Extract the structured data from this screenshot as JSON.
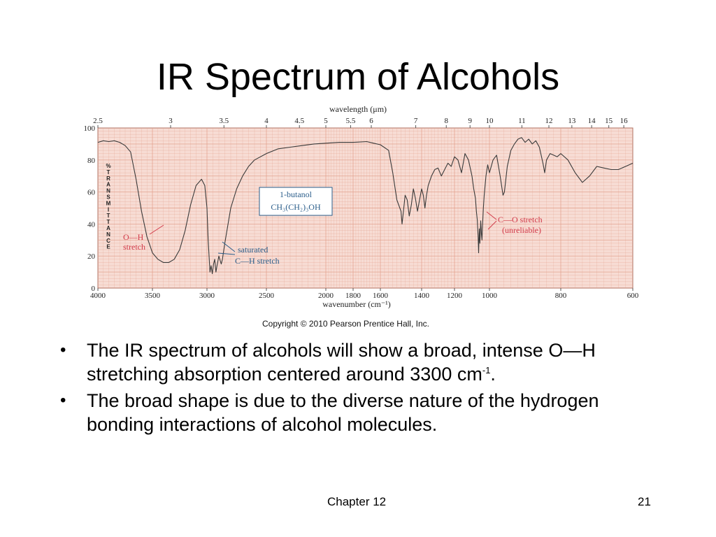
{
  "slide": {
    "title": "IR Spectrum of Alcohols",
    "copyright": "Copyright © 2010 Pearson Prentice Hall, Inc.",
    "bullets": [
      {
        "before": "The IR spectrum of alcohols will show a broad, intense O—H stretching absorption centered around 3300 cm",
        "sup": "-1",
        "after": "."
      },
      {
        "before": "The broad shape is due to the diverse nature of the hydrogen bonding interactions of alcohol molecules.",
        "sup": "",
        "after": ""
      }
    ],
    "footer": {
      "chapter": "Chapter 12",
      "page": "21"
    }
  },
  "chart_data": {
    "type": "line",
    "title": "",
    "xlabel": "wavenumber (cm⁻¹)",
    "top_axis_label": "wavelength (μm)",
    "ylabel_letters": [
      "%",
      "T",
      "R",
      "A",
      "N",
      "S",
      "M",
      "I",
      "T",
      "T",
      "A",
      "N",
      "C",
      "E"
    ],
    "x_ticks": [
      {
        "v": 4000,
        "label": "4000"
      },
      {
        "v": 3500,
        "label": "3500"
      },
      {
        "v": 3000,
        "label": "3000"
      },
      {
        "v": 2500,
        "label": "2500"
      },
      {
        "v": 2000,
        "label": "2000"
      },
      {
        "v": 1800,
        "label": "1800"
      },
      {
        "v": 1600,
        "label": "1600"
      },
      {
        "v": 1400,
        "label": "1400"
      },
      {
        "v": 1200,
        "label": "1200"
      },
      {
        "v": 1000,
        "label": "1000"
      },
      {
        "v": 800,
        "label": "800"
      },
      {
        "v": 600,
        "label": "600"
      }
    ],
    "top_ticks": [
      {
        "v": 2.5,
        "label": "2.5"
      },
      {
        "v": 3,
        "label": "3"
      },
      {
        "v": 3.5,
        "label": "3.5"
      },
      {
        "v": 4,
        "label": "4"
      },
      {
        "v": 4.5,
        "label": "4.5"
      },
      {
        "v": 5,
        "label": "5"
      },
      {
        "v": 5.5,
        "label": "5.5"
      },
      {
        "v": 6,
        "label": "6"
      },
      {
        "v": 7,
        "label": "7"
      },
      {
        "v": 8,
        "label": "8"
      },
      {
        "v": 9,
        "label": "9"
      },
      {
        "v": 10,
        "label": "10"
      },
      {
        "v": 11,
        "label": "11"
      },
      {
        "v": 12,
        "label": "12"
      },
      {
        "v": 13,
        "label": "13"
      },
      {
        "v": 14,
        "label": "14"
      },
      {
        "v": 15,
        "label": "15"
      },
      {
        "v": 16,
        "label": "16"
      }
    ],
    "y_ticks": [
      0,
      20,
      40,
      60,
      80,
      100
    ],
    "ylim": [
      0,
      100
    ],
    "grid": true,
    "colors": {
      "grid_bg": "#f7dcd4",
      "grid_line": "#e2a08c",
      "curve": "#3a3a3a",
      "annotation_red": "#d23b4a",
      "annotation_blue": "#2a5d8a"
    },
    "series": [
      {
        "name": "1-butanol",
        "points": [
          [
            4000,
            91
          ],
          [
            3950,
            92
          ],
          [
            3900,
            91.5
          ],
          [
            3850,
            92
          ],
          [
            3800,
            91
          ],
          [
            3750,
            89
          ],
          [
            3700,
            85
          ],
          [
            3650,
            68
          ],
          [
            3600,
            48
          ],
          [
            3550,
            32
          ],
          [
            3500,
            22
          ],
          [
            3450,
            18
          ],
          [
            3400,
            16
          ],
          [
            3350,
            16
          ],
          [
            3300,
            18
          ],
          [
            3250,
            24
          ],
          [
            3200,
            36
          ],
          [
            3150,
            52
          ],
          [
            3100,
            64
          ],
          [
            3050,
            68
          ],
          [
            3020,
            64
          ],
          [
            3000,
            50
          ],
          [
            2990,
            30
          ],
          [
            2975,
            10
          ],
          [
            2965,
            14
          ],
          [
            2955,
            9
          ],
          [
            2945,
            15
          ],
          [
            2935,
            18
          ],
          [
            2925,
            10
          ],
          [
            2915,
            14
          ],
          [
            2900,
            20
          ],
          [
            2880,
            15
          ],
          [
            2870,
            18
          ],
          [
            2850,
            28
          ],
          [
            2800,
            50
          ],
          [
            2750,
            62
          ],
          [
            2700,
            70
          ],
          [
            2650,
            76
          ],
          [
            2600,
            80
          ],
          [
            2500,
            84
          ],
          [
            2400,
            87
          ],
          [
            2300,
            88
          ],
          [
            2200,
            89
          ],
          [
            2100,
            90
          ],
          [
            2000,
            90.5
          ],
          [
            1900,
            91
          ],
          [
            1800,
            91
          ],
          [
            1700,
            91.5
          ],
          [
            1650,
            90.5
          ],
          [
            1600,
            89.5
          ],
          [
            1560,
            86
          ],
          [
            1540,
            72
          ],
          [
            1520,
            55
          ],
          [
            1500,
            48
          ],
          [
            1495,
            40
          ],
          [
            1490,
            46
          ],
          [
            1480,
            58
          ],
          [
            1470,
            55
          ],
          [
            1460,
            45
          ],
          [
            1450,
            52
          ],
          [
            1440,
            62
          ],
          [
            1430,
            56
          ],
          [
            1420,
            48
          ],
          [
            1410,
            55
          ],
          [
            1400,
            62
          ],
          [
            1390,
            58
          ],
          [
            1380,
            50
          ],
          [
            1370,
            58
          ],
          [
            1360,
            64
          ],
          [
            1340,
            70
          ],
          [
            1320,
            74
          ],
          [
            1300,
            75
          ],
          [
            1280,
            70
          ],
          [
            1260,
            74
          ],
          [
            1240,
            78
          ],
          [
            1220,
            76
          ],
          [
            1200,
            82
          ],
          [
            1180,
            80
          ],
          [
            1160,
            72
          ],
          [
            1150,
            78
          ],
          [
            1140,
            84
          ],
          [
            1120,
            80
          ],
          [
            1100,
            70
          ],
          [
            1090,
            62
          ],
          [
            1080,
            56
          ],
          [
            1075,
            48
          ],
          [
            1070,
            43
          ],
          [
            1065,
            32
          ],
          [
            1062,
            22
          ],
          [
            1060,
            30
          ],
          [
            1058,
            37
          ],
          [
            1055,
            28
          ],
          [
            1052,
            36
          ],
          [
            1050,
            42
          ],
          [
            1046,
            34
          ],
          [
            1043,
            30
          ],
          [
            1040,
            38
          ],
          [
            1035,
            50
          ],
          [
            1030,
            58
          ],
          [
            1020,
            70
          ],
          [
            1010,
            77
          ],
          [
            1000,
            72
          ],
          [
            990,
            80
          ],
          [
            980,
            83
          ],
          [
            970,
            70
          ],
          [
            962,
            58
          ],
          [
            958,
            60
          ],
          [
            950,
            76
          ],
          [
            940,
            86
          ],
          [
            930,
            90
          ],
          [
            920,
            93
          ],
          [
            910,
            94
          ],
          [
            900,
            91
          ],
          [
            890,
            93
          ],
          [
            880,
            90
          ],
          [
            870,
            92
          ],
          [
            860,
            88
          ],
          [
            850,
            78
          ],
          [
            845,
            72
          ],
          [
            840,
            80
          ],
          [
            830,
            84
          ],
          [
            820,
            83
          ],
          [
            810,
            82
          ],
          [
            800,
            84
          ],
          [
            780,
            80
          ],
          [
            760,
            72
          ],
          [
            740,
            66
          ],
          [
            720,
            70
          ],
          [
            700,
            76
          ],
          [
            680,
            75
          ],
          [
            660,
            74
          ],
          [
            640,
            74
          ],
          [
            620,
            76
          ],
          [
            600,
            78
          ]
        ]
      }
    ],
    "annotations": [
      {
        "id": "oh",
        "lines": [
          "O—H",
          "stretch"
        ],
        "color": "red"
      },
      {
        "id": "ch",
        "lines": [
          "saturated",
          "C—H stretch"
        ],
        "color": "blue"
      },
      {
        "id": "co",
        "lines": [
          "C—O stretch",
          "(unreliable)"
        ],
        "color": "red"
      },
      {
        "id": "compound",
        "lines": [
          "1-butanol",
          "CH₃(CH₂)₃OH"
        ],
        "color": "blue"
      }
    ]
  }
}
